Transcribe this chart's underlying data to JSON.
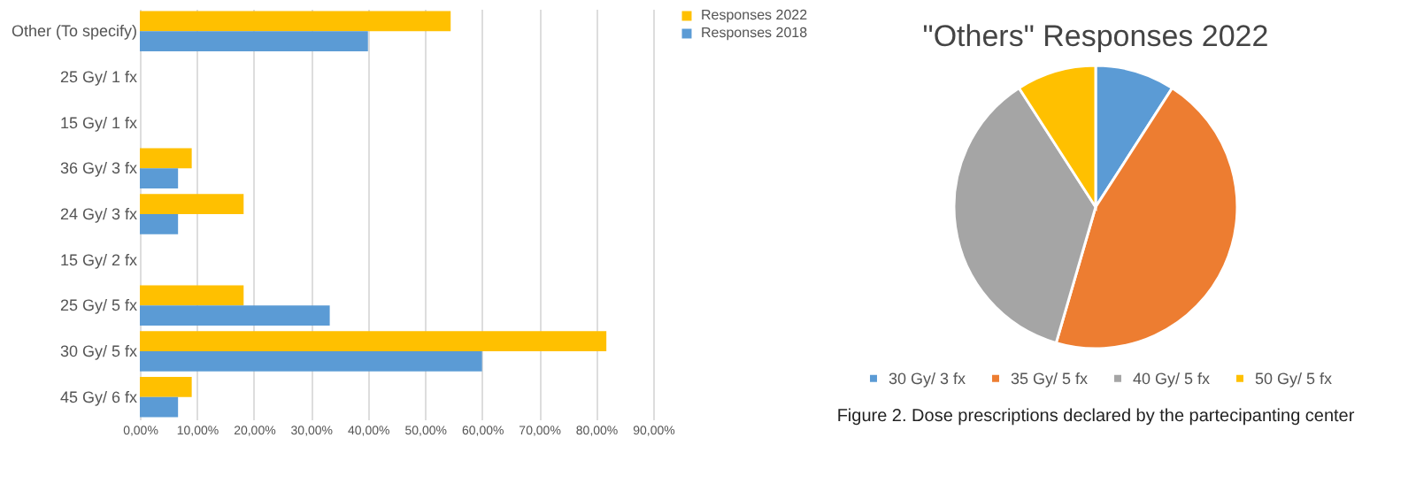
{
  "chart_data": [
    {
      "type": "bar",
      "orientation": "horizontal",
      "categories": [
        "Other (To specify)",
        "25 Gy/ 1 fx",
        "15 Gy/ 1 fx",
        "36 Gy/ 3 fx",
        "24 Gy/ 3 fx",
        "15 Gy/ 2 fx",
        "25 Gy/ 5 fx",
        "30 Gy/ 5 fx",
        "45 Gy/ 6 fx"
      ],
      "series": [
        {
          "name": "Responses 2022",
          "color": "#ffc000",
          "values": [
            54.5,
            0,
            0,
            9.1,
            18.2,
            0,
            18.2,
            81.8,
            9.1
          ]
        },
        {
          "name": "Responses 2018",
          "color": "#5b9bd5",
          "values": [
            40,
            0,
            0,
            6.7,
            6.7,
            0,
            33.3,
            60,
            6.7
          ]
        }
      ],
      "xlim": [
        0,
        90
      ],
      "xticks": [
        {
          "value": 0,
          "label": "0,00%"
        },
        {
          "value": 10,
          "label": "10,00%"
        },
        {
          "value": 20,
          "label": "20,00%"
        },
        {
          "value": 30,
          "label": "30,00%"
        },
        {
          "value": 40,
          "label": "40,00%"
        },
        {
          "value": 50,
          "label": "50,00%"
        },
        {
          "value": 60,
          "label": "60,00%"
        },
        {
          "value": 70,
          "label": "70,00%"
        },
        {
          "value": 80,
          "label": "80,00%"
        },
        {
          "value": 90,
          "label": "90,00%"
        }
      ],
      "grid": "x",
      "legend": "right"
    },
    {
      "type": "pie",
      "title": "\"Others\" Responses 2022",
      "categories": [
        "30 Gy/ 3 fx",
        "35 Gy/ 5 fx",
        "40 Gy/ 5 fx",
        "50 Gy/ 5 fx"
      ],
      "values": [
        9.1,
        45.4,
        36.4,
        9.1
      ],
      "colors": [
        "#5b9bd5",
        "#ed7d31",
        "#a5a5a5",
        "#ffc000"
      ],
      "legend": "bottom",
      "annotations": [
        "Figure 2. Dose prescriptions declared by the partecipanting center"
      ]
    }
  ]
}
